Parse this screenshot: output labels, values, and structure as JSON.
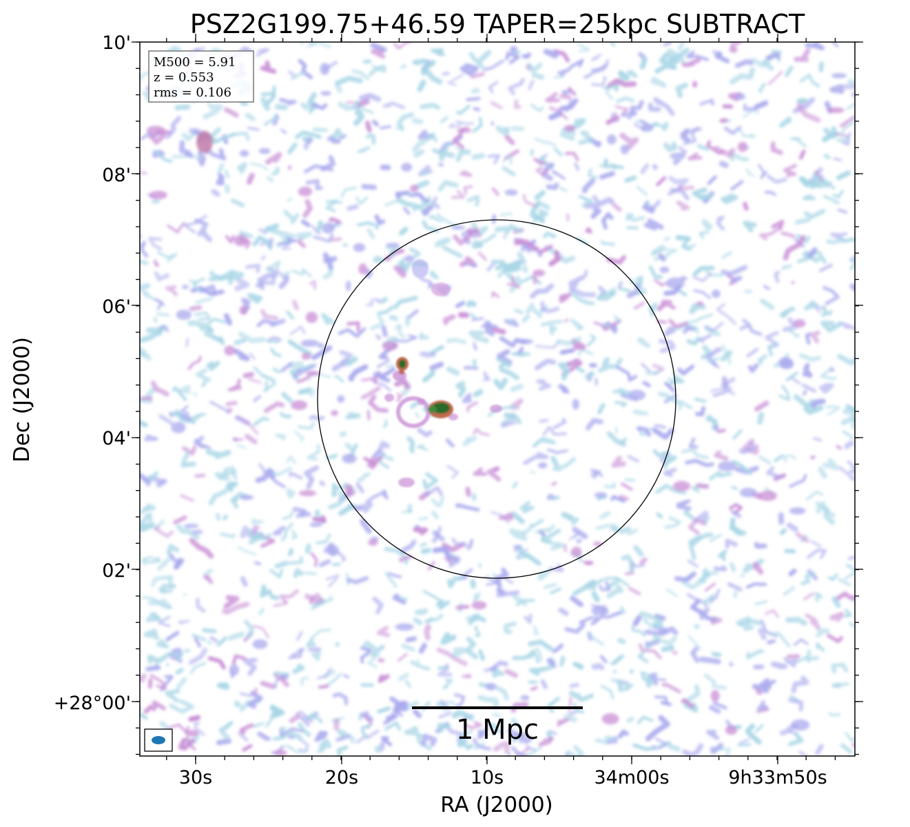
{
  "title": "PSZ2G199.75+46.59 TAPER=25kpc SUBTRACT",
  "axes": {
    "xlabel": "RA (J2000)",
    "ylabel": "Dec (J2000)",
    "x_ticks": [
      "30s",
      "20s",
      "10s",
      "34m00s",
      "9h33m50s"
    ],
    "y_ticks": [
      "10'",
      "08'",
      "06'",
      "04'",
      "02'",
      "+28°00'"
    ]
  },
  "info_box": {
    "m500": "M500 = 5.91",
    "z": "z = 0.553",
    "rms": "rms = 0.106"
  },
  "scalebar": {
    "label": "1 Mpc"
  },
  "colors": {
    "axis": "#000000",
    "circle": "#000000",
    "beam": "#1f77b4",
    "noise_light": "#a9d6e6",
    "noise_mid": "#a9a9ee",
    "noise_high": "#c98fd6",
    "emission_peak": "#2a6b2a",
    "emission_edge": "#b85a3a"
  }
}
